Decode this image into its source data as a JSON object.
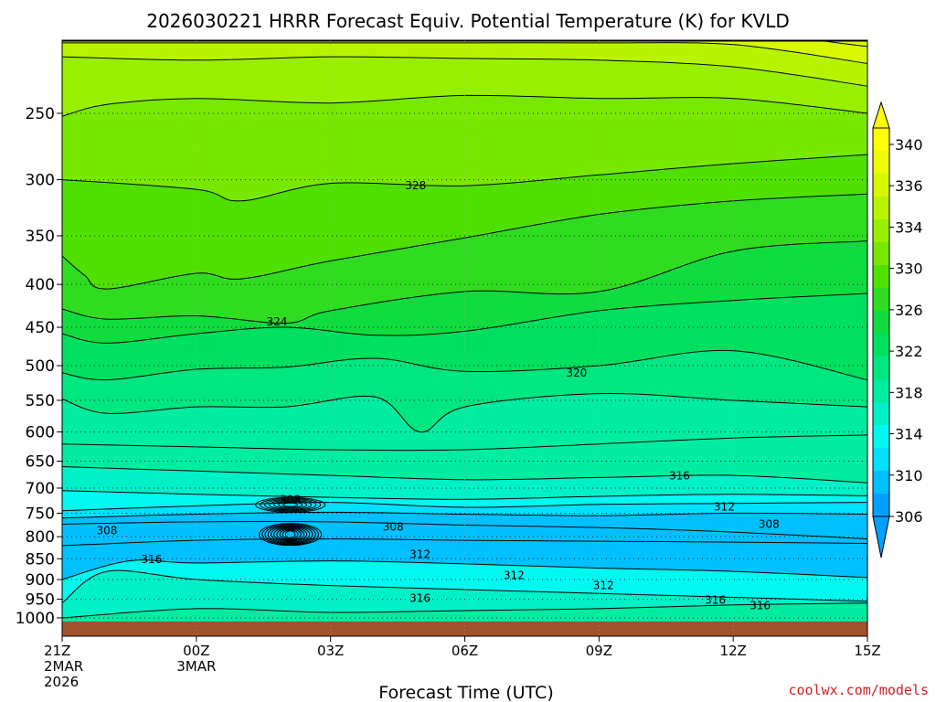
{
  "chart_data": {
    "type": "heatmap",
    "title": "2026030221 HRRR Forecast Equiv. Potential Temperature (K) for KVLD",
    "xlabel": "Forecast Time (UTC)",
    "ylabel": "",
    "x_ticks": [
      {
        "hour": 0,
        "lines": [
          "21Z",
          "2MAR",
          "2026"
        ]
      },
      {
        "hour": 3,
        "lines": [
          "00Z",
          "3MAR"
        ]
      },
      {
        "hour": 6,
        "lines": [
          "03Z"
        ]
      },
      {
        "hour": 9,
        "lines": [
          "06Z"
        ]
      },
      {
        "hour": 12,
        "lines": [
          "09Z"
        ]
      },
      {
        "hour": 15,
        "lines": [
          "12Z"
        ]
      },
      {
        "hour": 18,
        "lines": [
          "15Z"
        ]
      }
    ],
    "xlim": [
      0,
      18
    ],
    "y_ticks": [
      250,
      300,
      350,
      400,
      450,
      500,
      550,
      600,
      650,
      700,
      750,
      800,
      850,
      900,
      950,
      1000
    ],
    "ylim": [
      1025,
      200
    ],
    "y_scale": "log-pressure",
    "grid": "dotted",
    "colorbar": {
      "levels": [
        306,
        308,
        310,
        312,
        314,
        316,
        318,
        320,
        322,
        324,
        326,
        328,
        330,
        332,
        334,
        336,
        338,
        340
      ],
      "labels": [
        "340",
        "336",
        "334",
        "330",
        "326",
        "322",
        "318",
        "314",
        "310",
        "306"
      ],
      "colors": [
        "#00a0ff",
        "#00c0ff",
        "#00e0ff",
        "#00f8f0",
        "#00f0c8",
        "#00eca0",
        "#00e680",
        "#00e060",
        "#10dc40",
        "#30dc20",
        "#50e000",
        "#78e800",
        "#98f000",
        "#b8f400",
        "#d8f800",
        "#f0fc00",
        "#ffff00"
      ],
      "placement": "right"
    },
    "contour_labels": [
      {
        "text": "328",
        "hour": 7.9,
        "p": 305
      },
      {
        "text": "324",
        "hour": 4.8,
        "p": 443
      },
      {
        "text": "320",
        "hour": 11.5,
        "p": 510
      },
      {
        "text": "316",
        "hour": 13.8,
        "p": 677
      },
      {
        "text": "312",
        "hour": 14.8,
        "p": 737
      },
      {
        "text": "308",
        "hour": 15.8,
        "p": 773
      },
      {
        "text": "308",
        "hour": 5.1,
        "p": 722
      },
      {
        "text": "308",
        "hour": 1.0,
        "p": 787
      },
      {
        "text": "308",
        "hour": 7.4,
        "p": 779
      },
      {
        "text": "316",
        "hour": 2.0,
        "p": 852
      },
      {
        "text": "312",
        "hour": 8.0,
        "p": 840
      },
      {
        "text": "312",
        "hour": 10.1,
        "p": 890
      },
      {
        "text": "312",
        "hour": 12.1,
        "p": 915
      },
      {
        "text": "316",
        "hour": 8.0,
        "p": 948
      },
      {
        "text": "316",
        "hour": 14.6,
        "p": 952
      },
      {
        "text": "316",
        "hour": 15.6,
        "p": 967
      }
    ],
    "series": [
      {
        "level": 340,
        "hours": [
          0,
          3,
          6,
          9,
          12,
          15,
          18
        ],
        "p": [
          205,
          205,
          205,
          205,
          205,
          205,
          205
        ]
      },
      {
        "level": 336,
        "hours": [
          0,
          3,
          6,
          9,
          12,
          15,
          18
        ],
        "p": [
          200,
          200,
          200,
          200,
          200,
          200,
          208
        ]
      },
      {
        "level": 334,
        "hours": [
          0,
          3,
          6,
          9,
          12,
          15,
          18
        ],
        "p": [
          206,
          206,
          206,
          206,
          206,
          207,
          218
        ]
      },
      {
        "level": 332,
        "hours": [
          0,
          3,
          6,
          9,
          12,
          15,
          18
        ],
        "p": [
          214,
          216,
          214,
          215,
          216,
          220,
          232
        ]
      },
      {
        "level": 330,
        "hours": [
          0,
          1,
          3,
          6,
          9,
          12,
          15,
          18
        ],
        "p": [
          252,
          244,
          240,
          243,
          238,
          240,
          240,
          250
        ]
      },
      {
        "level": 328,
        "hours": [
          0,
          3,
          4,
          6,
          9,
          12,
          15,
          18
        ],
        "p": [
          300,
          308,
          318,
          303,
          305,
          296,
          287,
          280
        ]
      },
      {
        "level": 326,
        "hours": [
          0,
          0.5,
          1,
          3,
          4,
          6,
          9,
          12,
          15,
          18
        ],
        "p": [
          370,
          390,
          405,
          388,
          394,
          375,
          352,
          330,
          318,
          312
        ]
      },
      {
        "level": 324,
        "hours": [
          0,
          1,
          3,
          5,
          6,
          9,
          12,
          15,
          18
        ],
        "p": [
          428,
          440,
          436,
          445,
          430,
          408,
          408,
          365,
          355
        ]
      },
      {
        "level": 322,
        "hours": [
          0,
          1,
          3,
          5,
          7,
          9,
          12,
          15,
          18
        ],
        "p": [
          458,
          470,
          458,
          450,
          460,
          455,
          430,
          418,
          410
        ]
      },
      {
        "level": 320,
        "hours": [
          0,
          1,
          3,
          5,
          7,
          9,
          12,
          15,
          18
        ],
        "p": [
          510,
          520,
          505,
          502,
          490,
          508,
          500,
          480,
          520
        ]
      },
      {
        "level": 318,
        "hours": [
          0,
          1,
          3,
          5,
          7,
          8,
          9,
          12,
          15,
          18
        ],
        "p": [
          548,
          570,
          560,
          560,
          545,
          600,
          560,
          540,
          550,
          560
        ]
      },
      {
        "level": 317,
        "hours": [
          0,
          3,
          6,
          9,
          12,
          15,
          18
        ],
        "p": [
          620,
          625,
          630,
          630,
          620,
          610,
          605
        ]
      },
      {
        "level": 316,
        "hours": [
          0,
          3,
          6,
          9,
          12,
          15,
          18
        ],
        "p": [
          660,
          668,
          676,
          684,
          680,
          676,
          690
        ]
      },
      {
        "level": 314,
        "hours": [
          0,
          3,
          6,
          9,
          12,
          15,
          18
        ],
        "p": [
          705,
          712,
          718,
          722,
          716,
          712,
          715
        ]
      },
      {
        "level": 312,
        "hours": [
          0,
          3,
          6,
          9,
          12,
          15,
          18
        ],
        "p": [
          745,
          735,
          728,
          738,
          732,
          730,
          728
        ]
      },
      {
        "level": 310,
        "hours": [
          0,
          3,
          6,
          9,
          12,
          15,
          18
        ],
        "p": [
          760,
          752,
          748,
          752,
          755,
          750,
          752
        ]
      },
      {
        "level": 308,
        "hours": [
          0,
          3,
          6,
          9,
          12,
          15,
          18
        ],
        "p": [
          773,
          768,
          768,
          775,
          780,
          790,
          805
        ]
      },
      {
        "level": 309,
        "hours": [
          0,
          3,
          6,
          9,
          12,
          15,
          18
        ],
        "p": [
          820,
          808,
          805,
          808,
          810,
          812,
          815
        ]
      },
      {
        "level": 313,
        "hours": [
          0,
          1.5,
          3,
          6,
          9,
          12,
          15,
          18
        ],
        "p": [
          900,
          855,
          860,
          855,
          862,
          872,
          880,
          895
        ]
      },
      {
        "level": 315,
        "hours": [
          0,
          1,
          3,
          6,
          9,
          12,
          15,
          18
        ],
        "p": [
          960,
          880,
          900,
          915,
          925,
          935,
          945,
          955
        ]
      },
      {
        "level": 316.5,
        "hours": [
          0,
          3,
          6,
          9,
          12,
          15,
          18
        ],
        "p": [
          1000,
          975,
          985,
          980,
          975,
          965,
          960
        ]
      }
    ]
  },
  "footer": {
    "credit": "coolwx.com/models"
  }
}
